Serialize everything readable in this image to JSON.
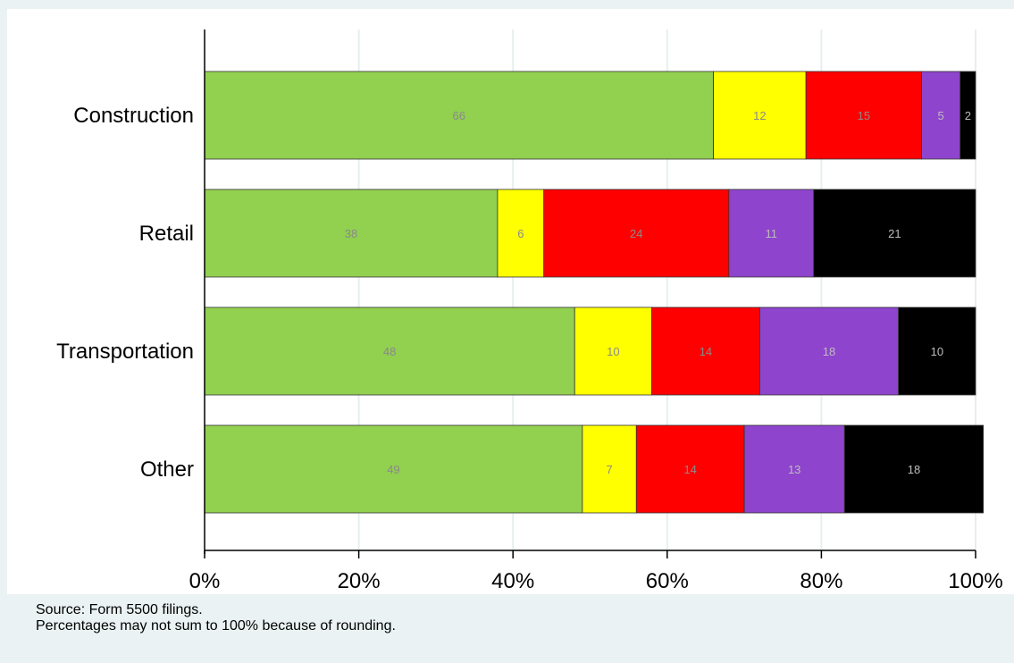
{
  "chart_data": {
    "type": "bar",
    "orientation": "horizontal",
    "stacked": true,
    "categories": [
      "Construction",
      "Retail",
      "Transportation",
      "Other"
    ],
    "series": [
      {
        "values": [
          66,
          38,
          48,
          49
        ]
      },
      {
        "values": [
          12,
          6,
          10,
          7
        ]
      },
      {
        "values": [
          15,
          24,
          14,
          14
        ]
      },
      {
        "values": [
          5,
          11,
          18,
          13
        ]
      },
      {
        "values": [
          2,
          21,
          10,
          18
        ]
      }
    ],
    "xlim": [
      0,
      100
    ],
    "x_ticks": [
      "0%",
      "20%",
      "40%",
      "60%",
      "80%",
      "100%"
    ],
    "grid": true,
    "legend": "none"
  },
  "colors": {
    "series": [
      "#92d050",
      "#ffff00",
      "#ff0000",
      "#8e44cc",
      "#000000"
    ],
    "label_on_light": "#8a8a8a",
    "label_on_dark": "#bdbdbd",
    "plot_background": "#ffffff",
    "page_background": "#eaf2f3",
    "grid": "#e6eef0"
  },
  "notes": {
    "source": "Source: Form 5500 filings.",
    "rounding": "Percentages may not sum to 100% because of rounding."
  }
}
